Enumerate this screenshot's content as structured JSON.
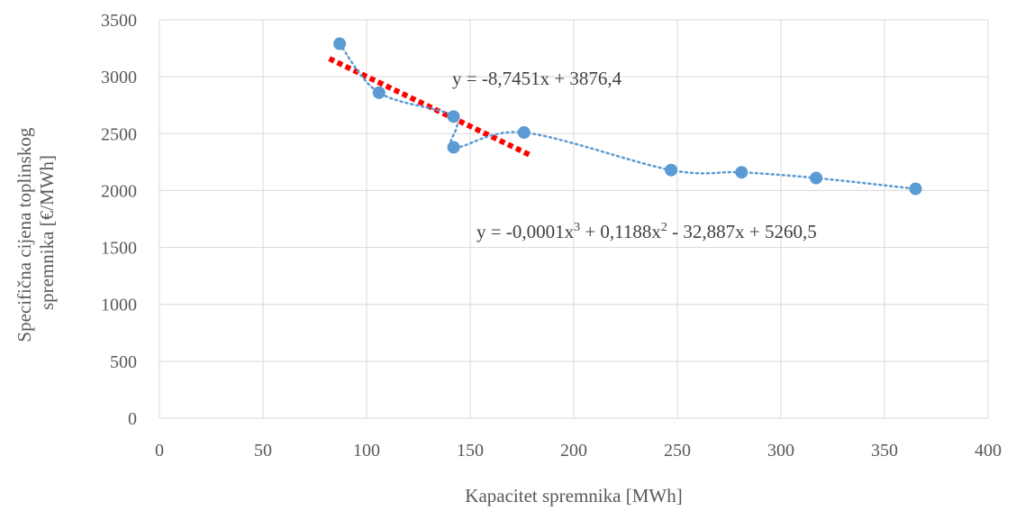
{
  "chart_data": {
    "type": "scatter",
    "xlabel": "Kapacitet spremnika [MWh]",
    "ylabel_lines": [
      "Specifična cijena toplinskog",
      "spremnika [€/MWh]"
    ],
    "xlim": [
      0,
      400
    ],
    "ylim": [
      0,
      3500
    ],
    "x_ticks": [
      0,
      50,
      100,
      150,
      200,
      250,
      300,
      350,
      400
    ],
    "y_ticks": [
      0,
      500,
      1000,
      1500,
      2000,
      2500,
      3000,
      3500
    ],
    "grid": true,
    "marker_color": "#5b9bd5",
    "points": [
      {
        "x": 87,
        "y": 3290
      },
      {
        "x": 106,
        "y": 2860
      },
      {
        "x": 142,
        "y": 2650
      },
      {
        "x": 142,
        "y": 2380
      },
      {
        "x": 176,
        "y": 2510
      },
      {
        "x": 247,
        "y": 2180
      },
      {
        "x": 281,
        "y": 2160
      },
      {
        "x": 317,
        "y": 2110
      },
      {
        "x": 365,
        "y": 2015
      }
    ],
    "trendlines": [
      {
        "type": "linear",
        "color": "#ff0000",
        "style": "dotted-thick",
        "coefficients": [
          3876.4,
          -8.7451
        ],
        "x_range": [
          82,
          180
        ],
        "equation_prefix": "y = -8,7451x + 3876,4"
      },
      {
        "type": "polynomial",
        "color": "#5b9bd5",
        "style": "dotted",
        "x_range": [
          87,
          365
        ],
        "equation_prefix": "y = -0,0001x",
        "sup1": "3",
        "equation_mid": " + 0,1188x",
        "sup2": "2",
        "equation_suffix": " - 32,887x + 5260,5"
      }
    ]
  }
}
